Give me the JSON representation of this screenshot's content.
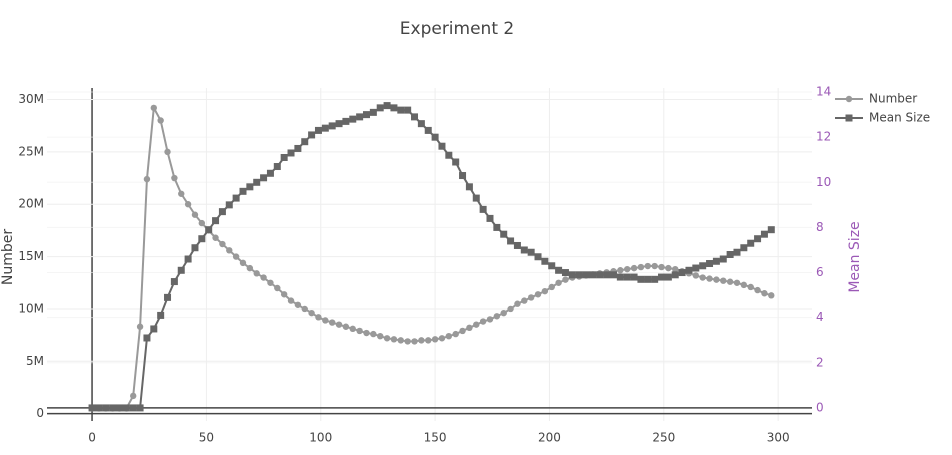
{
  "chart_data": {
    "type": "line",
    "title": "Experiment 2",
    "y_label": "Number",
    "y2_label": "Mean Size",
    "x": [
      0,
      3,
      6,
      9,
      12,
      15,
      18,
      21,
      24,
      27,
      30,
      33,
      36,
      39,
      42,
      45,
      48,
      51,
      54,
      57,
      60,
      63,
      66,
      69,
      72,
      75,
      78,
      81,
      84,
      87,
      90,
      93,
      96,
      99,
      102,
      105,
      108,
      111,
      114,
      117,
      120,
      123,
      126,
      129,
      132,
      135,
      138,
      141,
      144,
      147,
      150,
      153,
      156,
      159,
      162,
      165,
      168,
      171,
      174,
      177,
      180,
      183,
      186,
      189,
      192,
      195,
      198,
      201,
      204,
      207,
      210,
      213,
      216,
      219,
      222,
      225,
      228,
      231,
      234,
      237,
      240,
      243,
      246,
      249,
      252,
      255,
      258,
      261,
      264,
      267,
      270,
      273,
      276,
      279,
      282,
      285,
      288,
      291,
      294,
      297
    ],
    "series": [
      {
        "name": "Number",
        "color": "#999999",
        "symbol": "circle",
        "axis": "y",
        "values": [
          500000,
          500000,
          500000,
          500000,
          500000,
          500000,
          1700000,
          8300000,
          22400000,
          29200000,
          28000000,
          25000000,
          22500000,
          21000000,
          20000000,
          19000000,
          18200000,
          17500000,
          16800000,
          16200000,
          15600000,
          15000000,
          14400000,
          13900000,
          13400000,
          13000000,
          12500000,
          12000000,
          11400000,
          10800000,
          10400000,
          10000000,
          9600000,
          9200000,
          8900000,
          8700000,
          8500000,
          8300000,
          8100000,
          7900000,
          7700000,
          7600000,
          7400000,
          7200000,
          7100000,
          7000000,
          6900000,
          6900000,
          7000000,
          7000000,
          7100000,
          7200000,
          7400000,
          7600000,
          7900000,
          8200000,
          8500000,
          8800000,
          9000000,
          9300000,
          9600000,
          10000000,
          10500000,
          10800000,
          11100000,
          11400000,
          11700000,
          12100000,
          12500000,
          12800000,
          13000000,
          13100000,
          13200000,
          13300000,
          13400000,
          13500000,
          13600000,
          13700000,
          13800000,
          13900000,
          14000000,
          14100000,
          14100000,
          14000000,
          13900000,
          13800000,
          13600000,
          13400000,
          13200000,
          13000000,
          12900000,
          12800000,
          12700000,
          12600000,
          12500000,
          12300000,
          12100000,
          11800000,
          11500000,
          11300000
        ]
      },
      {
        "name": "Mean Size",
        "color": "#666666",
        "symbol": "square",
        "axis": "y2",
        "values": [
          0,
          0,
          0,
          0,
          0,
          0,
          0,
          0,
          3.1,
          3.5,
          4.1,
          4.9,
          5.6,
          6.1,
          6.6,
          7.1,
          7.5,
          7.9,
          8.3,
          8.7,
          9.0,
          9.3,
          9.6,
          9.8,
          10.0,
          10.2,
          10.4,
          10.7,
          11.1,
          11.3,
          11.5,
          11.8,
          12.1,
          12.3,
          12.4,
          12.5,
          12.6,
          12.7,
          12.8,
          12.9,
          13.0,
          13.1,
          13.3,
          13.4,
          13.3,
          13.2,
          13.2,
          12.9,
          12.6,
          12.3,
          12.0,
          11.6,
          11.2,
          10.9,
          10.3,
          9.8,
          9.3,
          8.8,
          8.4,
          8.0,
          7.7,
          7.4,
          7.2,
          7.0,
          6.9,
          6.7,
          6.5,
          6.3,
          6.1,
          6.0,
          5.9,
          5.9,
          5.9,
          5.9,
          5.9,
          5.9,
          5.9,
          5.8,
          5.8,
          5.8,
          5.7,
          5.7,
          5.7,
          5.8,
          5.8,
          5.9,
          6.0,
          6.1,
          6.2,
          6.3,
          6.4,
          6.5,
          6.6,
          6.8,
          6.9,
          7.1,
          7.3,
          7.5,
          7.7,
          7.9
        ]
      }
    ],
    "xlim": [
      -19.7,
      314.8
    ],
    "xticks": [
      0,
      50,
      100,
      150,
      200,
      250,
      300
    ],
    "ylim": [
      -700000,
      31100000
    ],
    "yticks": [
      0,
      {
        "value": 5000000,
        "label": "5M"
      },
      {
        "value": 10000000,
        "label": "10M"
      },
      {
        "value": 15000000,
        "label": "15M"
      },
      {
        "value": 20000000,
        "label": "20M"
      },
      {
        "value": 25000000,
        "label": "25M"
      },
      {
        "value": 30000000,
        "label": "30M"
      }
    ],
    "y2lim": [
      -0.58,
      14.18
    ],
    "y2ticks": [
      0,
      2,
      4,
      6,
      8,
      10,
      12,
      14
    ],
    "y2_color": "#9b59b6",
    "grid": true,
    "legend": "top-right"
  }
}
